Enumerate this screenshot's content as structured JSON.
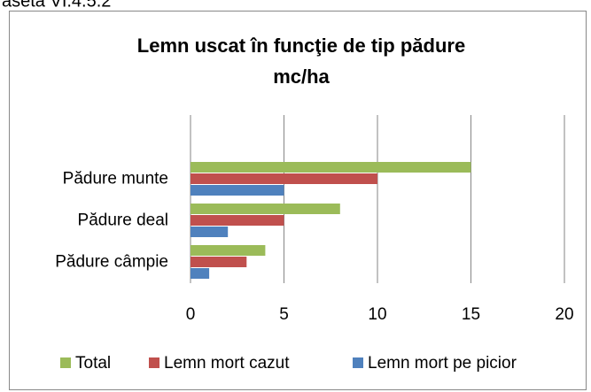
{
  "caption": "aseta VI.4.5.2",
  "chart_data": {
    "type": "bar",
    "orientation": "horizontal",
    "title": "Lemn uscat în funcţie de tip pădure",
    "subtitle": "mc/ha",
    "categories": [
      "Pădure munte",
      "Pădure deal",
      "Pădure câmpie"
    ],
    "series": [
      {
        "name": "Total",
        "color": "#9bbb59",
        "values": [
          15,
          8,
          4
        ]
      },
      {
        "name": "Lemn mort cazut",
        "color": "#c0504d",
        "values": [
          10,
          5,
          3
        ]
      },
      {
        "name": "Lemn mort pe picior",
        "color": "#4f81bd",
        "values": [
          5,
          2,
          1
        ]
      }
    ],
    "xlim": [
      0,
      20
    ],
    "xticks": [
      0,
      5,
      10,
      15,
      20
    ],
    "grid": true,
    "legend": "bottom"
  }
}
